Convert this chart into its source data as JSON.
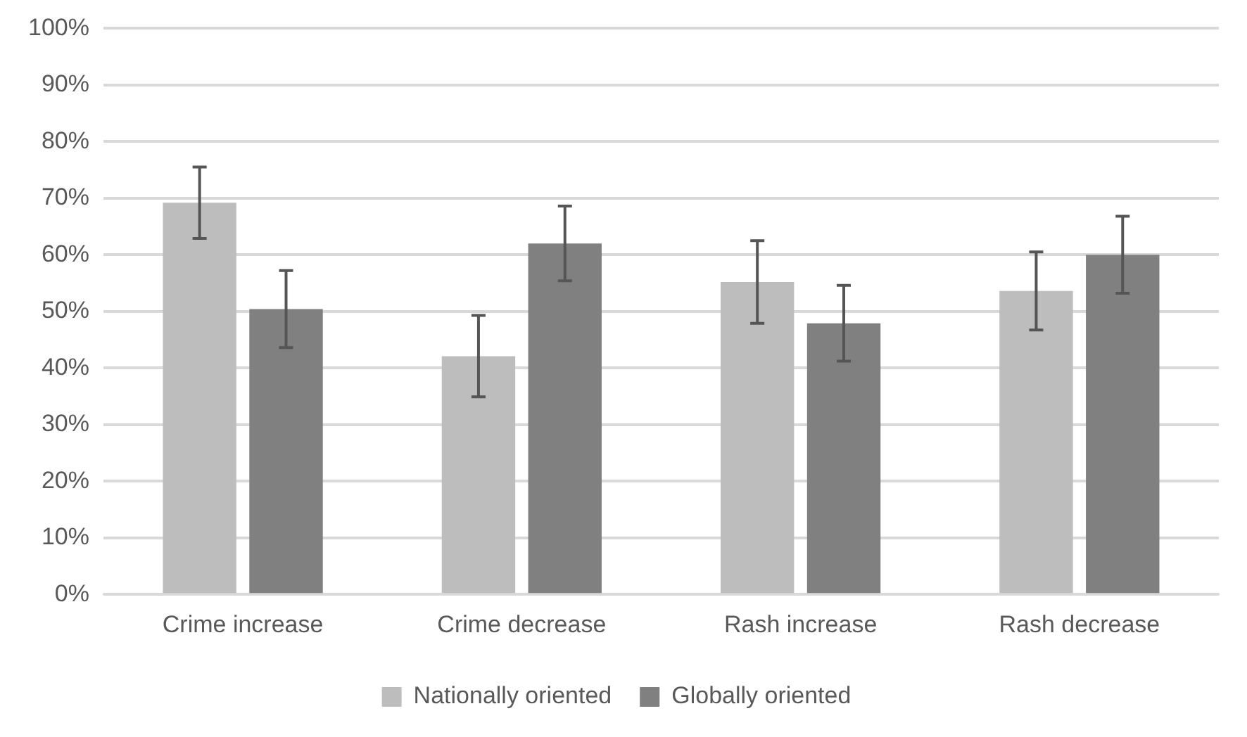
{
  "chart_data": {
    "type": "bar",
    "categories": [
      "Crime increase",
      "Crime decrease",
      "Rash increase",
      "Rash decrease"
    ],
    "series": [
      {
        "name": "Nationally oriented",
        "color": "#bdbdbd",
        "values": [
          69.2,
          42.1,
          55.2,
          53.6
        ],
        "errors": [
          6.3,
          7.2,
          7.3,
          6.9
        ]
      },
      {
        "name": "Globally oriented",
        "color": "#808080",
        "values": [
          50.4,
          62.0,
          47.9,
          60.0
        ],
        "errors": [
          6.8,
          6.6,
          6.7,
          6.8
        ]
      }
    ],
    "ylim": [
      0,
      100
    ],
    "yticks": [
      {
        "value": 0,
        "label": "0%"
      },
      {
        "value": 10,
        "label": "10%"
      },
      {
        "value": 20,
        "label": "20%"
      },
      {
        "value": 30,
        "label": "30%"
      },
      {
        "value": 40,
        "label": "40%"
      },
      {
        "value": 50,
        "label": "50%"
      },
      {
        "value": 60,
        "label": "60%"
      },
      {
        "value": 70,
        "label": "70%"
      },
      {
        "value": 80,
        "label": "80%"
      },
      {
        "value": 90,
        "label": "90%"
      },
      {
        "value": 100,
        "label": "100%"
      }
    ],
    "grid": "y",
    "legend": "bottom"
  }
}
